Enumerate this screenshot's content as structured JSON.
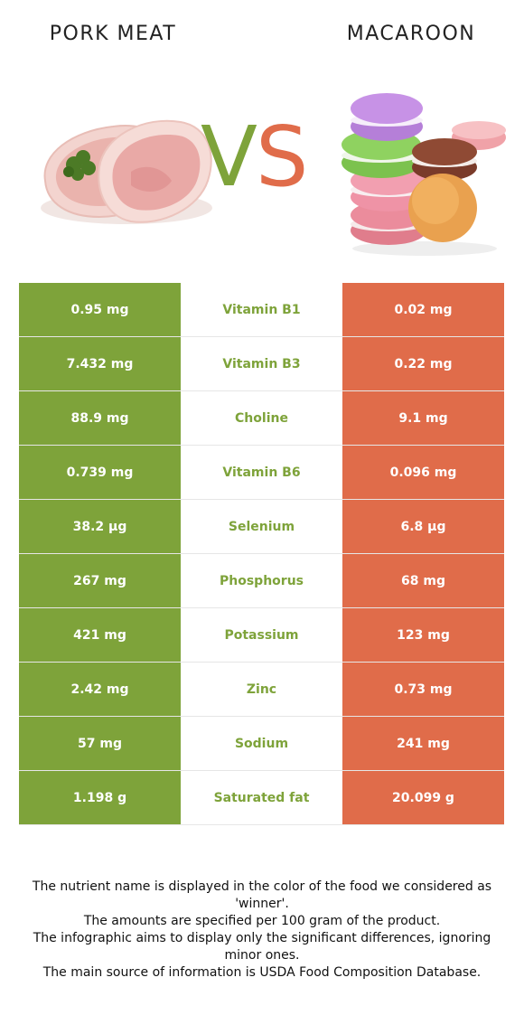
{
  "header": {
    "left_food": "PORK MEAT",
    "right_food": "MACAROON"
  },
  "vs": {
    "v": "V",
    "s": "S"
  },
  "colors": {
    "left": "#7ea33a",
    "right": "#e06c4a"
  },
  "rows": [
    {
      "left": "0.95 mg",
      "nutrient": "Vitamin B1",
      "right": "0.02 mg",
      "winner": "left"
    },
    {
      "left": "7.432 mg",
      "nutrient": "Vitamin B3",
      "right": "0.22 mg",
      "winner": "left"
    },
    {
      "left": "88.9 mg",
      "nutrient": "Choline",
      "right": "9.1 mg",
      "winner": "left"
    },
    {
      "left": "0.739 mg",
      "nutrient": "Vitamin B6",
      "right": "0.096 mg",
      "winner": "left"
    },
    {
      "left": "38.2 µg",
      "nutrient": "Selenium",
      "right": "6.8 µg",
      "winner": "left"
    },
    {
      "left": "267 mg",
      "nutrient": "Phosphorus",
      "right": "68 mg",
      "winner": "left"
    },
    {
      "left": "421 mg",
      "nutrient": "Potassium",
      "right": "123 mg",
      "winner": "left"
    },
    {
      "left": "2.42 mg",
      "nutrient": "Zinc",
      "right": "0.73 mg",
      "winner": "left"
    },
    {
      "left": "57 mg",
      "nutrient": "Sodium",
      "right": "241 mg",
      "winner": "left"
    },
    {
      "left": "1.198 g",
      "nutrient": "Saturated fat",
      "right": "20.099 g",
      "winner": "left"
    }
  ],
  "footnote": {
    "line1": "The nutrient name is displayed in the color of the food we considered as 'winner'.",
    "line2": "The amounts are specified per 100 gram of the product.",
    "line3": "The infographic aims to display only the significant differences, ignoring minor ones.",
    "line4": "The main source of information is USDA Food Composition Database."
  }
}
